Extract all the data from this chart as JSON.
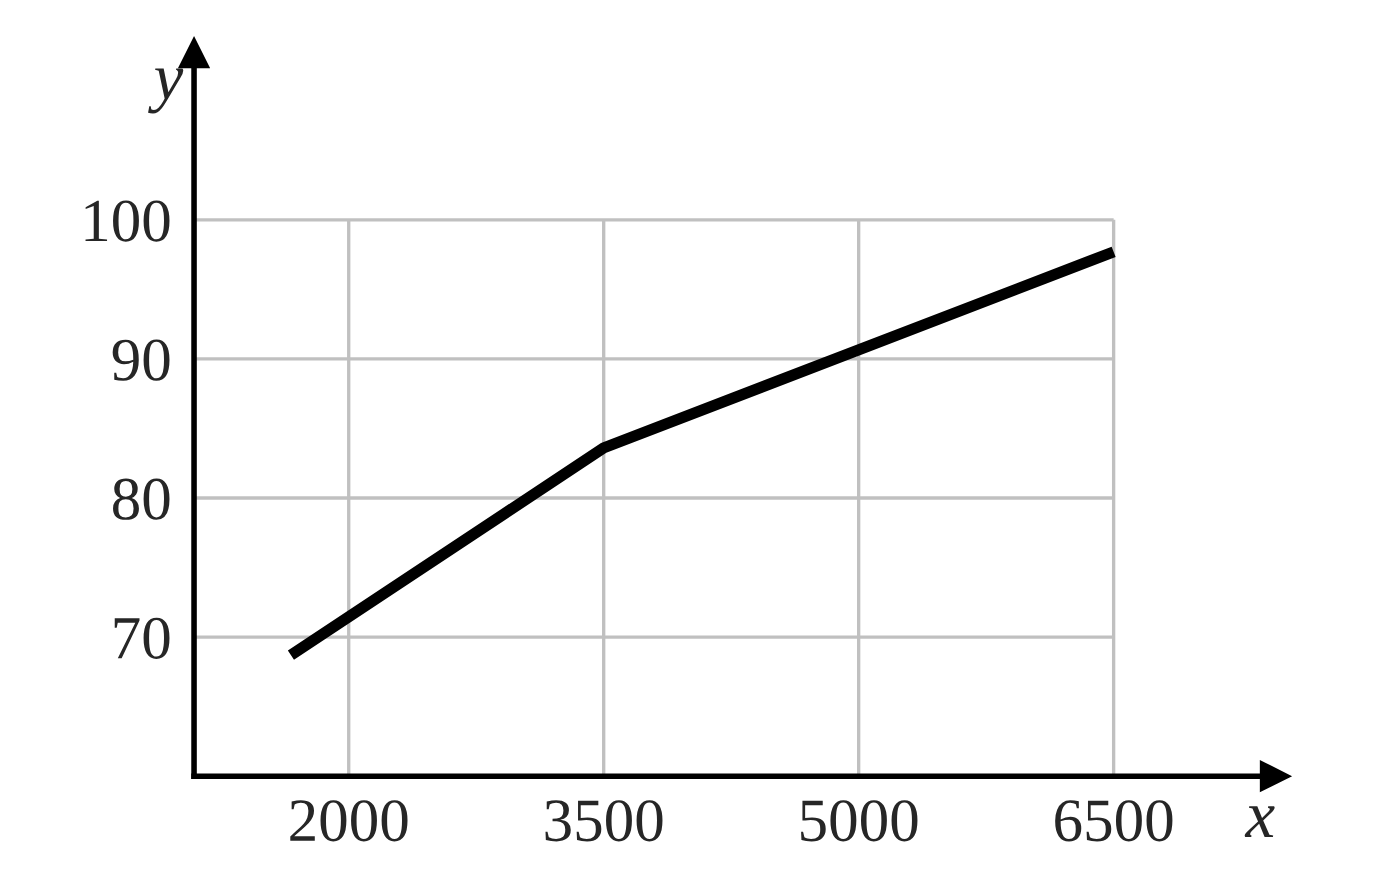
{
  "chart_data": {
    "type": "line",
    "xlabel": "x",
    "ylabel": "y",
    "x": [
      1660,
      3500,
      6500
    ],
    "series": [
      {
        "color": "#000000",
        "values": [
          68.7,
          83.6,
          97.7
        ]
      }
    ],
    "xlim": [
      1090,
      7450
    ],
    "ylim": [
      60,
      112
    ],
    "xticks": [
      2000,
      3500,
      5000,
      6500
    ],
    "yticks": [
      70,
      80,
      90,
      100
    ],
    "grid": true,
    "marker": "none",
    "line_style": "solid"
  }
}
